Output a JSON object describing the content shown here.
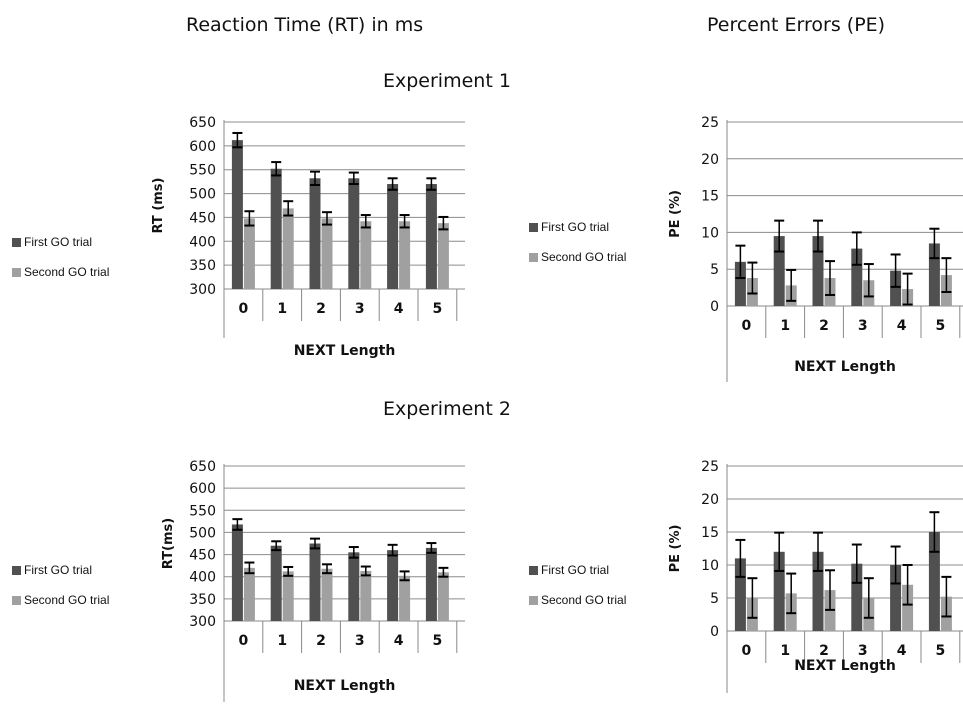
{
  "headings": {
    "rt_column": "Reaction Time (RT) in ms",
    "pe_column": "Percent Errors (PE)",
    "experiment1": "Experiment 1",
    "experiment2": "Experiment 2"
  },
  "colors": {
    "first": "#505050",
    "second": "#a0a0a0",
    "axis": "#888888",
    "grid": "#8c8c8c",
    "error": "#000000"
  },
  "chart_data": [
    {
      "type": "bar",
      "experiment": "Experiment 1",
      "measure": "RT",
      "ylabel": "RT (ms)",
      "xlabel": "NEXT Length",
      "categories": [
        "0",
        "1",
        "2",
        "3",
        "4",
        "5"
      ],
      "ylim": [
        300,
        650
      ],
      "yticks": [
        300,
        350,
        400,
        450,
        500,
        550,
        600,
        650
      ],
      "grid": true,
      "legend": "left",
      "series": [
        {
          "name": "First GO trial",
          "values": [
            612,
            552,
            532,
            532,
            520,
            520
          ],
          "errors": [
            15,
            14,
            14,
            12,
            12,
            12
          ]
        },
        {
          "name": "Second GO trial",
          "values": [
            448,
            469,
            448,
            442,
            442,
            438
          ],
          "errors": [
            15,
            15,
            13,
            13,
            13,
            13
          ]
        }
      ]
    },
    {
      "type": "bar",
      "experiment": "Experiment 1",
      "measure": "PE",
      "ylabel": "PE (%)",
      "xlabel": "NEXT Length",
      "categories": [
        "0",
        "1",
        "2",
        "3",
        "4",
        "5"
      ],
      "ylim": [
        0,
        25
      ],
      "yticks": [
        0,
        5,
        10,
        15,
        20,
        25
      ],
      "grid": true,
      "legend": "left",
      "series": [
        {
          "name": "First GO trial",
          "values": [
            6,
            9.5,
            9.5,
            7.8,
            4.8,
            8.5
          ],
          "errors": [
            2.2,
            2.1,
            2.1,
            2.2,
            2.2,
            2
          ]
        },
        {
          "name": "Second GO trial",
          "values": [
            3.8,
            2.8,
            3.8,
            3.5,
            2.3,
            4.2
          ],
          "errors": [
            2.1,
            2.1,
            2.3,
            2.2,
            2.1,
            2.3
          ]
        }
      ]
    },
    {
      "type": "bar",
      "experiment": "Experiment 2",
      "measure": "RT",
      "ylabel": "RT(ms)",
      "xlabel": "NEXT Length",
      "categories": [
        "0",
        "1",
        "2",
        "3",
        "4",
        "5"
      ],
      "ylim": [
        300,
        650
      ],
      "yticks": [
        300,
        350,
        400,
        450,
        500,
        550,
        600,
        650
      ],
      "grid": true,
      "legend": "left",
      "series": [
        {
          "name": "First GO trial",
          "values": [
            518,
            470,
            475,
            455,
            460,
            465
          ],
          "errors": [
            12,
            10,
            11,
            12,
            12,
            11
          ]
        },
        {
          "name": "Second GO trial",
          "values": [
            420,
            412,
            418,
            413,
            402,
            410
          ],
          "errors": [
            12,
            10,
            10,
            10,
            10,
            10
          ]
        }
      ]
    },
    {
      "type": "bar",
      "experiment": "Experiment 2",
      "measure": "PE",
      "ylabel": "PE (%)",
      "xlabel": "NEXT Length",
      "categories": [
        "0",
        "1",
        "2",
        "3",
        "4",
        "5"
      ],
      "ylim": [
        0,
        25
      ],
      "yticks": [
        0,
        5,
        10,
        15,
        20,
        25
      ],
      "grid": true,
      "legend": "left",
      "series": [
        {
          "name": "First GO trial",
          "values": [
            11,
            12,
            12,
            10.2,
            10,
            15
          ],
          "errors": [
            2.8,
            2.9,
            2.9,
            2.9,
            2.8,
            3
          ]
        },
        {
          "name": "Second GO trial",
          "values": [
            5,
            5.7,
            6.2,
            5,
            7,
            5.2
          ],
          "errors": [
            3,
            3,
            3,
            3,
            3,
            3
          ]
        }
      ]
    }
  ]
}
